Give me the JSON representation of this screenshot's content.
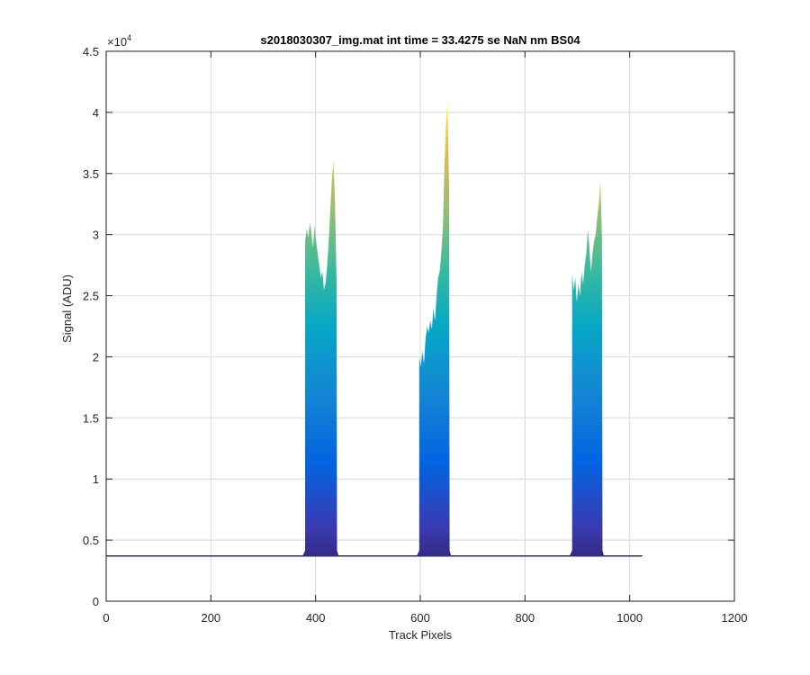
{
  "chart_data": {
    "type": "area",
    "title": "s2018030307_img.mat int time = 33.4275 se  NaN nm BS04",
    "xlabel": "Track Pixels",
    "ylabel": "Signal (ADU)",
    "y_exponent_label": "×10",
    "y_exponent_power": "4",
    "xlim": [
      0,
      1200
    ],
    "ylim": [
      0,
      45000
    ],
    "x_ticks": [
      0,
      200,
      400,
      600,
      800,
      1000,
      1200
    ],
    "x_tick_labels": [
      "0",
      "200",
      "400",
      "600",
      "800",
      "1000",
      "1200"
    ],
    "y_ticks": [
      0,
      5000,
      10000,
      15000,
      20000,
      25000,
      30000,
      35000,
      40000,
      45000
    ],
    "y_tick_labels": [
      "0",
      "0.5",
      "1",
      "1.5",
      "2",
      "2.5",
      "3",
      "3.5",
      "4",
      "4.5"
    ],
    "grid": true,
    "colormap": "parula",
    "colors": [
      "#352a87",
      "#0363e1",
      "#1485d4",
      "#06a7c6",
      "#38b99e",
      "#92bf73",
      "#d9ba56",
      "#fcce2e",
      "#f9fb0e"
    ],
    "baseline_level": 3700,
    "baseline_x_range": [
      0,
      1024
    ],
    "series": [
      {
        "x": [
          380,
          383,
          386,
          389,
          392,
          395,
          398,
          401,
          404,
          407,
          410,
          413,
          416,
          419,
          422,
          425,
          428,
          431,
          434,
          437,
          440
        ],
        "values": [
          29500,
          30500,
          29800,
          31000,
          30200,
          29000,
          30800,
          29500,
          28500,
          27500,
          26500,
          27000,
          25500,
          26000,
          27500,
          29500,
          32000,
          34500,
          36000,
          33000,
          26500
        ]
      },
      {
        "x": [
          598,
          601,
          604,
          607,
          610,
          613,
          616,
          619,
          622,
          625,
          628,
          631,
          634,
          637,
          640,
          643,
          646,
          649,
          652,
          655
        ],
        "values": [
          20000,
          19200,
          20500,
          19500,
          21500,
          22500,
          22000,
          23000,
          22300,
          24000,
          23000,
          25000,
          26500,
          27000,
          28500,
          30500,
          35500,
          39000,
          41000,
          34000
        ]
      },
      {
        "x": [
          890,
          893,
          896,
          899,
          902,
          905,
          908,
          911,
          914,
          917,
          920,
          923,
          926,
          929,
          932,
          935,
          938,
          941,
          944,
          947
        ],
        "values": [
          26800,
          25500,
          26500,
          24500,
          26000,
          25000,
          27000,
          26000,
          27500,
          28500,
          30500,
          29000,
          27000,
          28500,
          29500,
          30000,
          31500,
          32500,
          34300,
          30000
        ]
      }
    ]
  }
}
